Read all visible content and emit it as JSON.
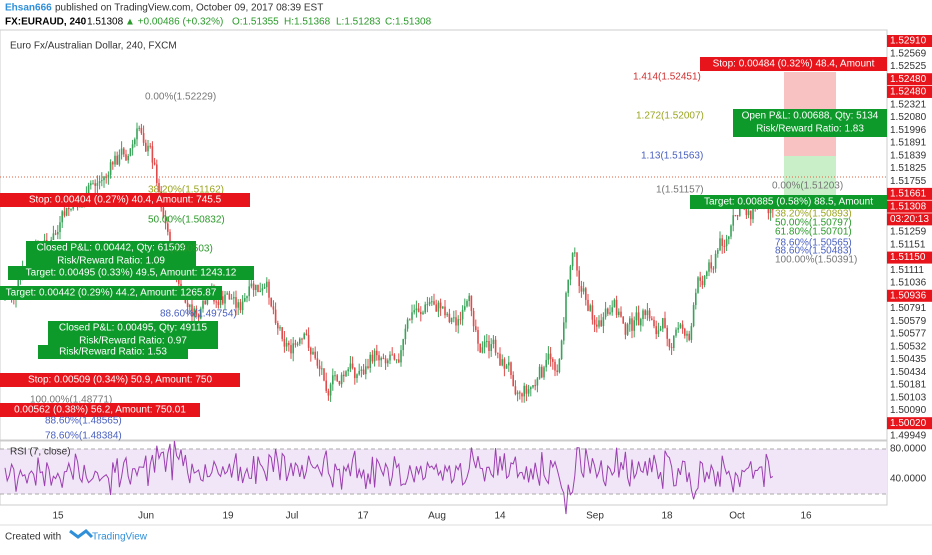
{
  "header": {
    "author": "Ehsan666",
    "published": "published on TradingView.com, October 09, 2017 08:39 EST",
    "symbol": "FX:EURAUD, 240",
    "last": "1.51308",
    "change": "▲ +0.00486 (+0.32%)",
    "ohlc": [
      "O:1.51355",
      "H:1.51368",
      "L:1.51283",
      "C:1.51308"
    ]
  },
  "chart": {
    "title": "Euro Fx/Australian Dollar, 240, FXCM",
    "price_axis": [
      {
        "text": "1.52910",
        "red": true
      },
      {
        "text": "1.52569",
        "red": false
      },
      {
        "text": "1.52525",
        "red": false
      },
      {
        "text": "1.52480",
        "red": true
      },
      {
        "text": "1.52480",
        "red": true
      },
      {
        "text": "1.52321",
        "red": false
      },
      {
        "text": "1.52080",
        "red": false
      },
      {
        "text": "1.51996",
        "red": false
      },
      {
        "text": "1.51891",
        "red": false
      },
      {
        "text": "1.51839",
        "red": false
      },
      {
        "text": "1.51825",
        "red": false
      },
      {
        "text": "1.51755",
        "red": false
      },
      {
        "text": "1.51661",
        "red": true
      },
      {
        "text": "1.51308",
        "red": true
      },
      {
        "text": "03:20:13",
        "red": true
      },
      {
        "text": "1.51259",
        "red": false
      },
      {
        "text": "1.51151",
        "red": false
      },
      {
        "text": "1.51150",
        "red": true
      },
      {
        "text": "1.51111",
        "red": false
      },
      {
        "text": "1.51036",
        "red": false
      },
      {
        "text": "1.50936",
        "red": true
      },
      {
        "text": "1.50791",
        "red": false
      },
      {
        "text": "1.50579",
        "red": false
      },
      {
        "text": "1.50577",
        "red": false
      },
      {
        "text": "1.50532",
        "red": false
      },
      {
        "text": "1.50435",
        "red": false
      },
      {
        "text": "1.50434",
        "red": false
      },
      {
        "text": "1.50181",
        "red": false
      },
      {
        "text": "1.50103",
        "red": false
      },
      {
        "text": "1.50090",
        "red": false
      },
      {
        "text": "1.50020",
        "red": true
      },
      {
        "text": "1.49949",
        "red": false
      }
    ],
    "time_axis": [
      "15",
      "Jun",
      "19",
      "Jul",
      "17",
      "Aug",
      "14",
      "Sep",
      "18",
      "Oct",
      "16"
    ],
    "annotations": [
      [
        "Stop: 0.00484 (0.32%) 48.4, Amount"
      ],
      [
        "1.414(1.52451)"
      ],
      [
        "1.272(1.52007)"
      ],
      [
        "Open P&L: 0.00688, Qty: 5134",
        "Risk/Reward Ratio: 1.83"
      ],
      [
        "1.13(1.51563)"
      ],
      [
        "1(1.51157)"
      ],
      [
        "0.00%(1.51203)"
      ],
      [
        "Target: 0.00885 (0.58%) 88.5, Amount"
      ],
      [
        "38.20%(1.50893)"
      ],
      [
        "50.00%(1.50797)"
      ],
      [
        "61.80%(1.50701)"
      ],
      [
        "78.60%(1.50565)"
      ],
      [
        "88.60%(1.50483)"
      ],
      [
        "100.00%(1.50391)"
      ],
      [
        "0.00%(1.52229)"
      ],
      [
        "38.20%(1.51162)"
      ],
      [
        "Stop: 0.00404 (0.27%) 40.4, Amount: 745.5"
      ],
      [
        "50.00%(1.50832)"
      ],
      [
        "Closed P&L: 0.00442, Qty: 61509",
        "Risk/Reward Ratio: 1.09"
      ],
      [
        "(1.50503)"
      ],
      [
        "Target: 0.00495 (0.33%) 49.5, Amount: 1243.12"
      ],
      [
        "Target: 0.00442 (0.29%) 44.2, Amount: 1265.87"
      ],
      [
        "88.60%(1.49754)"
      ],
      [
        "Closed P&L: 0.00495, Qty: 49115",
        "Risk/Reward Ratio: 0.97"
      ],
      [
        "Risk/Reward Ratio: 1.53"
      ],
      [
        "Stop: 0.00509 (0.34%) 50.9, Amount: 750"
      ],
      [
        "100.00%(1.48771)"
      ],
      [
        "0.00562 (0.38%) 56.2, Amount: 750.01"
      ],
      [
        "88.60%(1.48565)"
      ],
      [
        "78.60%(1.48384)"
      ]
    ]
  },
  "rsi": {
    "title": "RSI (7, close)",
    "axis": [
      "80.0000",
      "40.0000"
    ]
  },
  "footer": {
    "created": "Created with",
    "brand": "TradingView"
  }
}
